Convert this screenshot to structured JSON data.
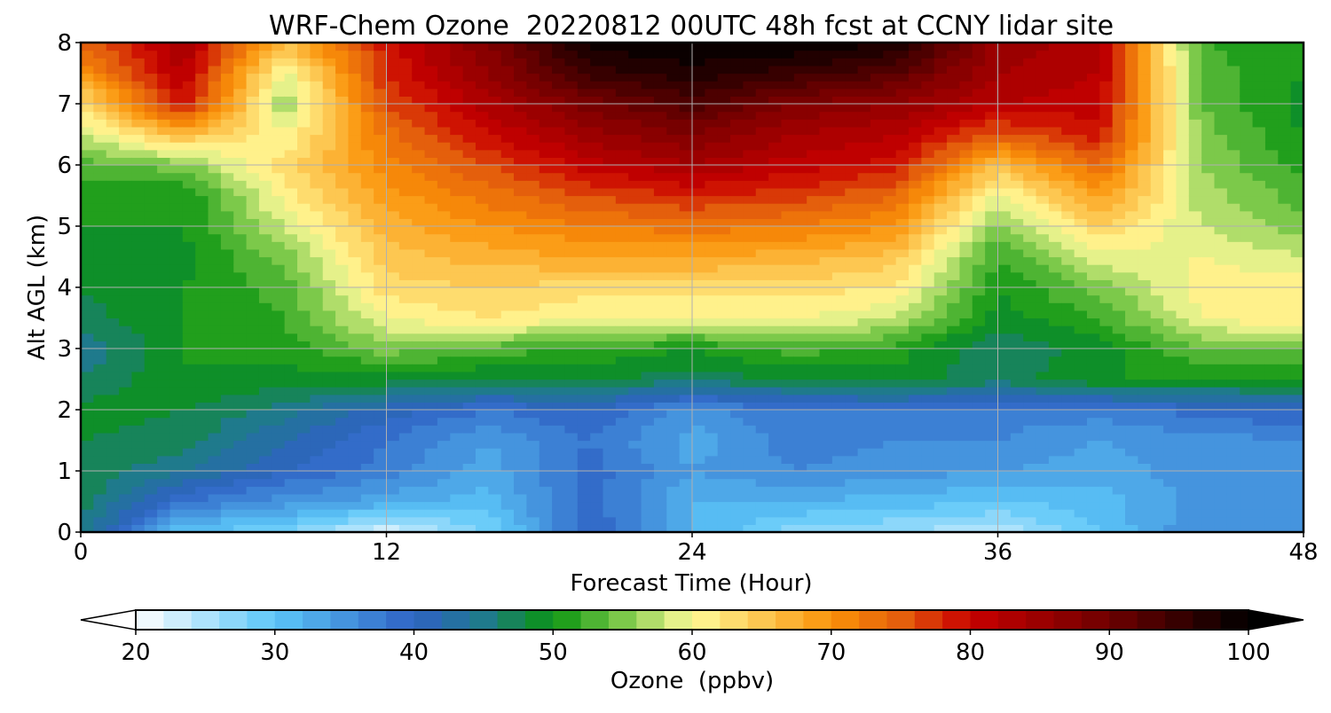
{
  "chart_data": {
    "type": "heatmap",
    "title": "WRF-Chem Ozone  20220812 00UTC 48h fcst at CCNY lidar site",
    "xlabel": "Forecast Time (Hour)",
    "ylabel": "Alt AGL (km)",
    "xlim": [
      0,
      48
    ],
    "ylim": [
      0,
      8
    ],
    "xticks": [
      0,
      12,
      24,
      36,
      48
    ],
    "yticks": [
      0,
      1,
      2,
      3,
      4,
      5,
      6,
      7,
      8
    ],
    "grid": true,
    "value_label": "Ozone  (ppbv)",
    "colorbar": {
      "orientation": "horizontal",
      "placement": "bottom",
      "extend": "both",
      "min": 20,
      "max": 100,
      "step": 2,
      "ticks": [
        20,
        30,
        40,
        50,
        60,
        70,
        80,
        90,
        100
      ],
      "color_stops": [
        {
          "value": 20,
          "color": "#ffffff"
        },
        {
          "value": 30,
          "color": "#5bc6f8"
        },
        {
          "value": 40,
          "color": "#2f62c4"
        },
        {
          "value": 45,
          "color": "#1f7a8c"
        },
        {
          "value": 50,
          "color": "#0a9410"
        },
        {
          "value": 55,
          "color": "#7cc94a"
        },
        {
          "value": 60,
          "color": "#fffb9a"
        },
        {
          "value": 70,
          "color": "#fb9208"
        },
        {
          "value": 75,
          "color": "#e45f0c"
        },
        {
          "value": 80,
          "color": "#c80000"
        },
        {
          "value": 90,
          "color": "#6e0000"
        },
        {
          "value": 100,
          "color": "#000000"
        }
      ],
      "under_color": "#ffffff",
      "over_color": "#000000"
    },
    "x": [
      0,
      4,
      8,
      12,
      16,
      20,
      24,
      28,
      32,
      36,
      40,
      44,
      48
    ],
    "y": [
      0,
      0.5,
      1,
      1.5,
      2,
      2.5,
      3,
      3.5,
      4,
      4.5,
      5,
      5.5,
      6,
      6.5,
      7,
      7.5,
      8
    ],
    "z": [
      [
        46,
        30,
        28,
        22,
        28,
        40,
        32,
        27,
        26,
        24,
        30,
        36,
        36
      ],
      [
        47,
        38,
        35,
        33,
        31,
        39,
        32,
        32,
        31,
        30,
        31,
        35,
        36
      ],
      [
        48,
        44,
        40,
        37,
        33,
        39,
        34,
        36,
        35,
        34,
        33,
        35,
        36
      ],
      [
        48,
        47,
        42,
        38,
        34,
        38,
        33,
        37,
        36,
        36,
        34,
        35,
        36
      ],
      [
        49,
        48,
        45,
        41,
        38,
        40,
        35,
        38,
        38,
        37,
        37,
        39,
        40
      ],
      [
        46,
        50,
        49,
        49,
        48,
        48,
        47,
        48,
        49,
        47,
        50,
        50,
        50
      ],
      [
        44,
        50,
        51,
        55,
        53,
        52,
        50,
        53,
        51,
        46,
        49,
        54,
        54
      ],
      [
        47,
        50,
        52,
        60,
        62,
        60,
        60,
        60,
        58,
        49,
        52,
        60,
        62
      ],
      [
        48,
        50,
        53,
        63,
        64,
        63,
        63,
        63,
        62,
        50,
        55,
        61,
        62
      ],
      [
        49,
        49,
        55,
        65,
        67,
        68,
        68,
        67,
        65,
        52,
        59,
        60,
        58
      ],
      [
        50,
        50,
        58,
        67,
        70,
        72,
        73,
        72,
        70,
        55,
        64,
        58,
        55
      ],
      [
        51,
        50,
        61,
        69,
        73,
        76,
        78,
        77,
        74,
        59,
        69,
        57,
        53
      ],
      [
        53,
        55,
        63,
        71,
        76,
        81,
        84,
        81,
        79,
        66,
        74,
        56,
        51
      ],
      [
        58,
        66,
        60,
        73,
        80,
        85,
        88,
        84,
        82,
        75,
        79,
        55,
        50
      ],
      [
        62,
        80,
        56,
        76,
        83,
        89,
        93,
        88,
        86,
        82,
        81,
        54,
        49
      ],
      [
        70,
        82,
        59,
        78,
        86,
        95,
        97,
        95,
        92,
        84,
        82,
        53,
        50
      ],
      [
        74,
        84,
        66,
        79,
        88,
        99,
        100,
        100,
        98,
        85,
        83,
        52,
        51
      ]
    ]
  }
}
